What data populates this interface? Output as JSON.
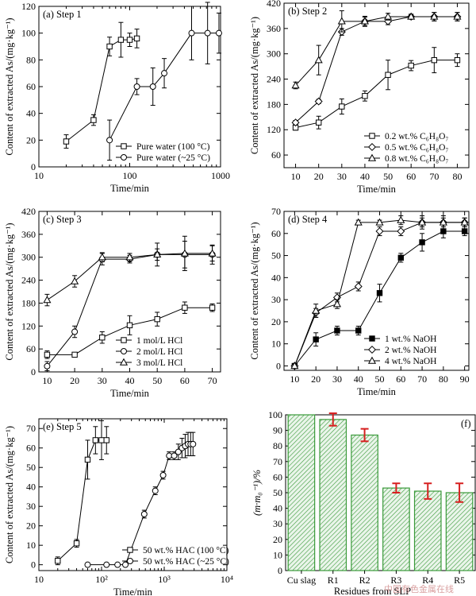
{
  "watermark": "中国有色金属在线",
  "chart_data": [
    {
      "type": "line",
      "label": "(a) Step 1",
      "ylabel": "Content of extracted As/(mg·kg⁻¹)",
      "xlabel": "Time/min",
      "xscale": "log",
      "xlim": [
        10,
        1000
      ],
      "ylim": [
        0,
        120
      ],
      "xticks": [
        10,
        100,
        1000
      ],
      "xtick_labels": [
        "10",
        "100",
        "1000"
      ],
      "yticks": [
        0,
        20,
        40,
        60,
        80,
        100,
        120
      ],
      "legend_pos": "lower-right",
      "series": [
        {
          "name": "Pure water (100 °C)",
          "marker": "square",
          "fill": false,
          "x": [
            20,
            40,
            60,
            80,
            100,
            120
          ],
          "y": [
            19,
            35,
            90,
            95,
            95,
            96
          ],
          "err": [
            5,
            4,
            7,
            13,
            5,
            7
          ]
        },
        {
          "name": "Pure water (~25 °C)",
          "marker": "circle",
          "fill": false,
          "x": [
            60,
            120,
            180,
            240,
            480,
            720,
            960
          ],
          "y": [
            20,
            60,
            60,
            70,
            100,
            100,
            100
          ],
          "err": [
            15,
            6,
            14,
            11,
            20,
            23,
            15
          ]
        }
      ]
    },
    {
      "type": "line",
      "label": "(b) Step 2",
      "ylabel": "Content of extracted As/(mg·kg⁻¹)",
      "xlabel": "Time/min",
      "xlim": [
        5,
        85
      ],
      "ylim": [
        30,
        420
      ],
      "xticks": [
        10,
        20,
        30,
        40,
        50,
        60,
        70,
        80
      ],
      "yticks": [
        60,
        120,
        180,
        240,
        300,
        360,
        420
      ],
      "legend_pos": "lower-right",
      "series": [
        {
          "name": "0.2 wt.% C₆H₈O₇",
          "marker": "square",
          "fill": false,
          "x": [
            10,
            20,
            30,
            40,
            50,
            60,
            70,
            80
          ],
          "y": [
            125,
            137,
            175,
            200,
            250,
            272,
            285,
            285
          ],
          "err": [
            6,
            15,
            18,
            12,
            35,
            12,
            30,
            15
          ]
        },
        {
          "name": "0.5 wt.% C₆H₈O₇",
          "marker": "diamond",
          "fill": false,
          "x": [
            10,
            20,
            30,
            40,
            50,
            60,
            70,
            80
          ],
          "y": [
            137,
            187,
            352,
            377,
            377,
            388,
            388,
            388
          ],
          "err": [
            5,
            5,
            8,
            12,
            8,
            5,
            10,
            10
          ]
        },
        {
          "name": "0.8 wt.% C₆H₈O₇",
          "marker": "triangle",
          "fill": false,
          "x": [
            10,
            20,
            30,
            40,
            50,
            60,
            70,
            80
          ],
          "y": [
            225,
            285,
            377,
            377,
            388,
            388,
            388,
            388
          ],
          "err": [
            8,
            35,
            25,
            10,
            8,
            6,
            10,
            10
          ]
        }
      ]
    },
    {
      "type": "line",
      "label": "(c) Step 3",
      "ylabel": "Content of extracted As/(mg·kg⁻¹)",
      "xlabel": "Time/min",
      "xlim": [
        7,
        73
      ],
      "ylim": [
        0,
        420
      ],
      "xticks": [
        10,
        20,
        30,
        40,
        50,
        60,
        70
      ],
      "yticks": [
        0,
        60,
        120,
        180,
        240,
        300,
        360,
        420
      ],
      "legend_pos": "lower-right",
      "series": [
        {
          "name": "1 mol/L HCl",
          "marker": "square",
          "fill": false,
          "x": [
            10,
            20,
            30,
            40,
            50,
            60,
            70
          ],
          "y": [
            45,
            45,
            90,
            122,
            138,
            168,
            168
          ],
          "err": [
            10,
            5,
            15,
            25,
            18,
            15,
            10
          ]
        },
        {
          "name": "2 mol/L HCl",
          "marker": "circle",
          "fill": false,
          "x": [
            10,
            20,
            30,
            40,
            50,
            60,
            70
          ],
          "y": [
            15,
            105,
            295,
            295,
            307,
            307,
            307
          ],
          "err": [
            12,
            15,
            15,
            10,
            15,
            35,
            25
          ]
        },
        {
          "name": "3 mol/L HCl",
          "marker": "triangle",
          "fill": false,
          "x": [
            10,
            20,
            30,
            40,
            50,
            60,
            70
          ],
          "y": [
            188,
            237,
            300,
            300,
            307,
            310,
            310
          ],
          "err": [
            15,
            15,
            12,
            10,
            30,
            45,
            20
          ]
        }
      ]
    },
    {
      "type": "line",
      "label": "(d) Step 4",
      "ylabel": "Content of extracted As/(mg·kg⁻¹)",
      "xlabel": "Time/min",
      "xlim": [
        5,
        92
      ],
      "ylim": [
        -2,
        70
      ],
      "xticks": [
        10,
        20,
        30,
        40,
        50,
        60,
        70,
        80,
        90
      ],
      "yticks": [
        0,
        10,
        20,
        30,
        40,
        50,
        60,
        70
      ],
      "legend_pos": "lower-right",
      "series": [
        {
          "name": "1 wt.% NaOH",
          "marker": "square",
          "fill": true,
          "x": [
            10,
            20,
            30,
            40,
            50,
            60,
            70,
            80,
            90
          ],
          "y": [
            0,
            12,
            16,
            16,
            33,
            49,
            56,
            61,
            61
          ],
          "err": [
            0.5,
            3,
            2,
            2,
            4,
            2,
            4,
            3,
            2
          ]
        },
        {
          "name": "2 wt.% NaOH",
          "marker": "diamond",
          "fill": false,
          "x": [
            10,
            20,
            30,
            40,
            50,
            60,
            70,
            80,
            90
          ],
          "y": [
            0,
            24,
            31,
            36,
            61,
            61,
            65,
            65,
            65
          ],
          "err": [
            0.5,
            2,
            2,
            2,
            2,
            2,
            3,
            3,
            2
          ]
        },
        {
          "name": "4 wt.% NaOH",
          "marker": "triangle",
          "fill": false,
          "x": [
            10,
            20,
            30,
            40,
            50,
            60,
            70,
            80,
            90
          ],
          "y": [
            0,
            25,
            28,
            65,
            65,
            66,
            65,
            65,
            65
          ],
          "err": [
            0.5,
            3,
            2,
            1,
            1,
            2,
            2,
            2,
            2
          ]
        }
      ]
    },
    {
      "type": "line",
      "label": "(e) Step 5",
      "ylabel": "Content of extracted As/(mg·kg⁻¹)",
      "xlabel": "Time/min",
      "xscale": "log",
      "xlim": [
        10,
        10000
      ],
      "ylim": [
        -3,
        75
      ],
      "xticks": [
        10,
        100,
        1000,
        10000
      ],
      "xtick_labels": [
        "10",
        "10²",
        "10³",
        "10⁴"
      ],
      "yticks": [
        0,
        10,
        20,
        30,
        40,
        50,
        60,
        70
      ],
      "legend_pos": "lower-right",
      "series": [
        {
          "name": "50 wt.% HAC (100 °C)",
          "marker": "square",
          "fill": false,
          "x": [
            20,
            40,
            60,
            80,
            100,
            120
          ],
          "y": [
            2,
            11,
            54,
            64,
            64,
            64
          ],
          "err": [
            2,
            2,
            10,
            7,
            10,
            7
          ]
        },
        {
          "name": "50 wt.% HAC (~25 °C)",
          "marker": "circle",
          "fill": false,
          "x": [
            60,
            120,
            180,
            240,
            480,
            720,
            960,
            1200,
            1440,
            1680,
            1920,
            2160,
            2400,
            2640,
            2880
          ],
          "y": [
            0,
            0,
            0,
            0,
            26,
            38,
            46,
            56,
            56,
            58,
            60,
            61,
            62,
            62,
            62
          ],
          "err": [
            0,
            0,
            0,
            0,
            2,
            2,
            2,
            2,
            2,
            4,
            5,
            6,
            6,
            6,
            6
          ]
        }
      ]
    },
    {
      "type": "bar",
      "label": "(f)",
      "ylabel": "(m·m₀⁻¹)/%",
      "xlabel": "Residues from SLP",
      "ylim": [
        0,
        100
      ],
      "yticks": [
        0,
        10,
        20,
        30,
        40,
        50,
        60,
        70,
        80,
        90,
        100
      ],
      "categories": [
        "Cu slag",
        "R1",
        "R2",
        "R3",
        "R4",
        "R5"
      ],
      "values": [
        100,
        97,
        87,
        53,
        51,
        50
      ],
      "err": [
        0,
        4,
        4,
        3,
        5,
        6
      ],
      "bar_color": "#3a9a3a",
      "err_color": "#d62020"
    }
  ]
}
